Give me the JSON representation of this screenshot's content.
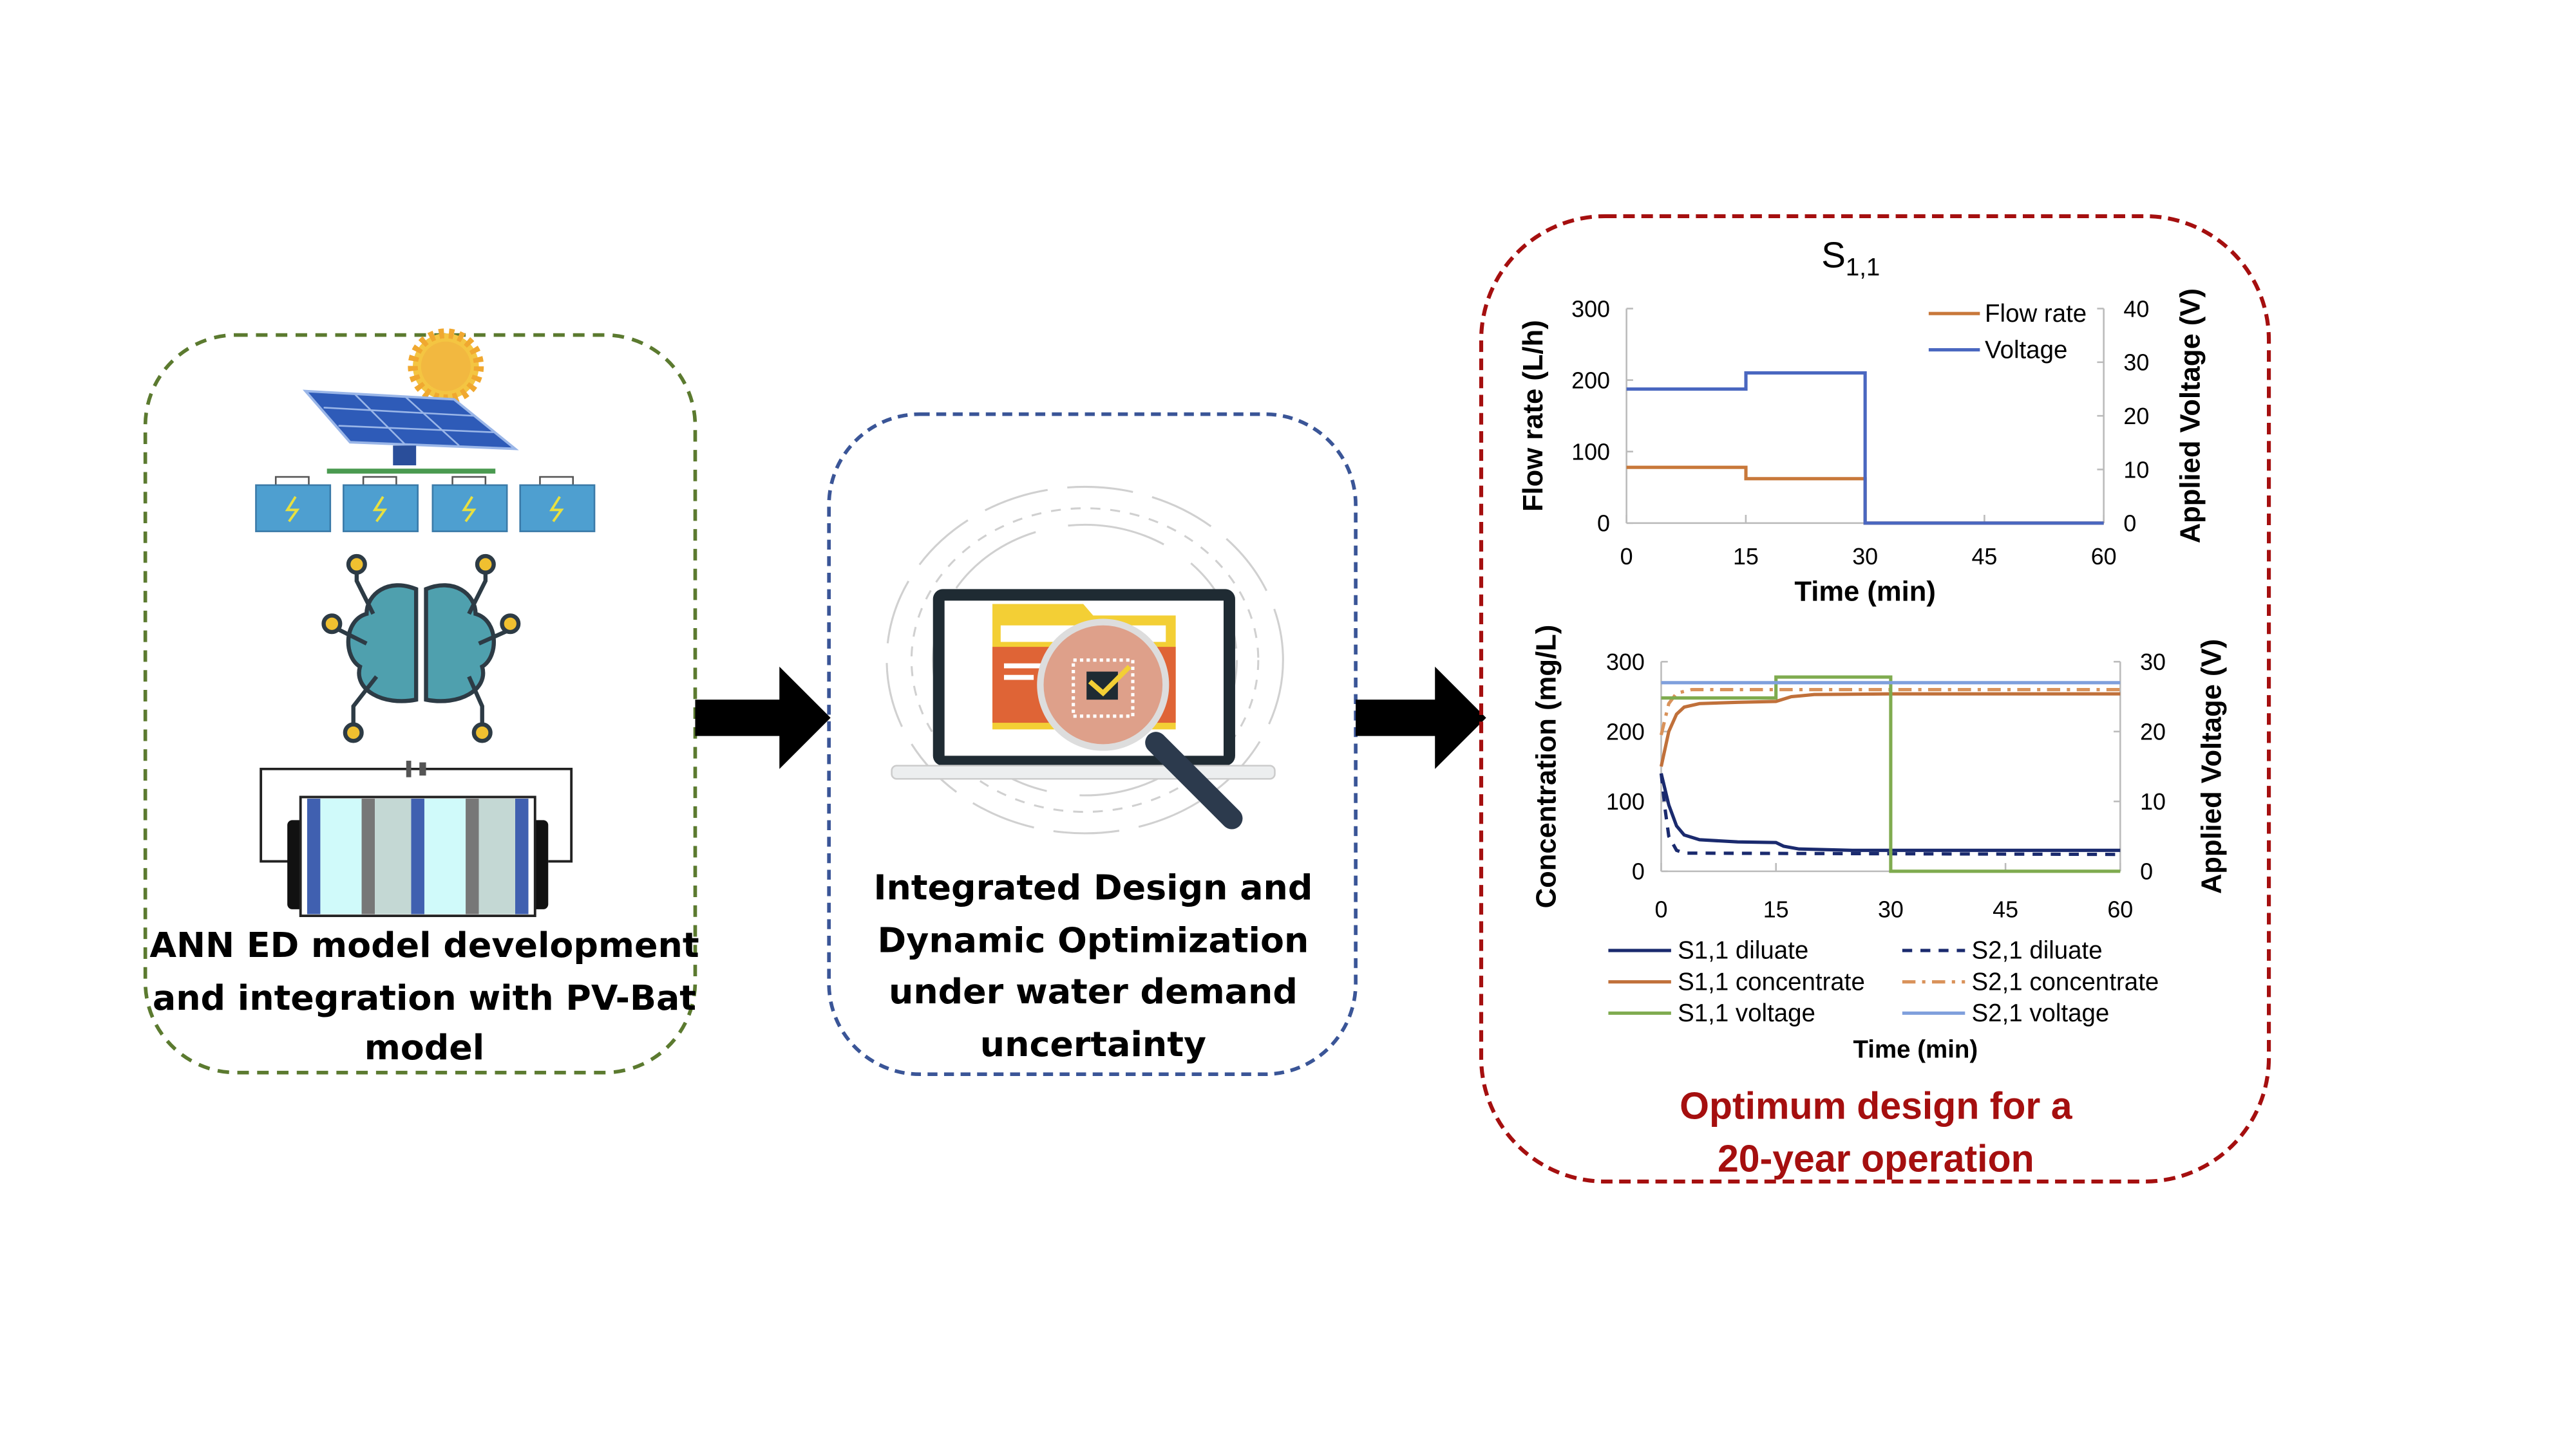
{
  "panels": {
    "left": {
      "caption": [
        "ANN ED model development",
        "and integration with PV-Bat",
        "model"
      ],
      "border_color": "#5b7a2f"
    },
    "middle": {
      "caption": [
        "Integrated Design and",
        "Dynamic Optimization",
        "under water demand",
        "uncertainty"
      ],
      "border_color": "#3a5597"
    },
    "right": {
      "title_main": "S",
      "title_sub": "1,1",
      "caption": [
        "Optimum design for a",
        "20-year operation"
      ],
      "border_color": "#a50f0f",
      "caption_color": "#a50f0f"
    }
  },
  "chart_data": [
    {
      "type": "line",
      "title": "S1,1",
      "xlabel": "Time (min)",
      "ylabel": "Flow rate (L/h)",
      "y2label": "Applied Voltage (V)",
      "xlim": [
        0,
        60
      ],
      "ylim": [
        0,
        300
      ],
      "y2lim": [
        0,
        40
      ],
      "xticks": [
        0,
        15,
        30,
        45,
        60
      ],
      "yticks": [
        0,
        100,
        200,
        300
      ],
      "y2ticks": [
        0,
        10,
        20,
        30,
        40
      ],
      "legend_position": "top-right",
      "series": [
        {
          "name": "Flow rate",
          "axis": "left",
          "color": "#c8783a",
          "dash": "",
          "points": [
            [
              0,
              78
            ],
            [
              15,
              78
            ],
            [
              15,
              62
            ],
            [
              30,
              62
            ],
            [
              30,
              0
            ],
            [
              60,
              0
            ]
          ]
        },
        {
          "name": "Voltage",
          "axis": "right",
          "color": "#4a67c0",
          "dash": "",
          "points": [
            [
              0,
              25
            ],
            [
              15,
              25
            ],
            [
              15,
              28
            ],
            [
              30,
              28
            ],
            [
              30,
              0
            ],
            [
              60,
              0
            ]
          ]
        }
      ]
    },
    {
      "type": "line",
      "xlabel": "Time (min)",
      "ylabel": "Concentration (mg/L)",
      "y2label": "Applied Voltage (V)",
      "xlim": [
        0,
        60
      ],
      "ylim": [
        0,
        300
      ],
      "y2lim": [
        0,
        30
      ],
      "xticks": [
        0,
        15,
        30,
        45,
        60
      ],
      "yticks": [
        0,
        100,
        200,
        300
      ],
      "y2ticks": [
        0,
        10,
        20,
        30
      ],
      "legend_position": "bottom",
      "series": [
        {
          "name": "S1,1 diluate",
          "axis": "left",
          "color": "#1a2a6e",
          "dash": "",
          "points": [
            [
              0,
              140
            ],
            [
              1,
              95
            ],
            [
              2,
              65
            ],
            [
              3,
              52
            ],
            [
              5,
              45
            ],
            [
              10,
              42
            ],
            [
              15,
              41
            ],
            [
              16,
              36
            ],
            [
              18,
              32
            ],
            [
              25,
              30
            ],
            [
              60,
              30
            ]
          ]
        },
        {
          "name": "S2,1 diluate",
          "axis": "left",
          "color": "#1a2a6e",
          "dash": "6,5",
          "points": [
            [
              0,
              140
            ],
            [
              0.5,
              90
            ],
            [
              1,
              50
            ],
            [
              2,
              30
            ],
            [
              3,
              26
            ],
            [
              60,
              24
            ]
          ]
        },
        {
          "name": "S1,1 concentrate",
          "axis": "left",
          "color": "#c0703a",
          "dash": "",
          "points": [
            [
              0,
              150
            ],
            [
              1,
              200
            ],
            [
              2,
              225
            ],
            [
              3,
              235
            ],
            [
              5,
              240
            ],
            [
              10,
              242
            ],
            [
              15,
              243
            ],
            [
              17,
              250
            ],
            [
              20,
              253
            ],
            [
              30,
              254
            ],
            [
              60,
              254
            ]
          ]
        },
        {
          "name": "S2,1 concentrate",
          "axis": "left",
          "color": "#d9925a",
          "dash": "8,4,2,4",
          "points": [
            [
              0,
              195
            ],
            [
              1,
              240
            ],
            [
              2,
              255
            ],
            [
              4,
              260
            ],
            [
              60,
              260
            ]
          ]
        },
        {
          "name": "S1,1 voltage",
          "axis": "right",
          "color": "#7fab4f",
          "dash": "",
          "points": [
            [
              0,
              24.8
            ],
            [
              15,
              24.8
            ],
            [
              15,
              27.8
            ],
            [
              30,
              27.8
            ],
            [
              30,
              0
            ],
            [
              60,
              0
            ]
          ]
        },
        {
          "name": "S2,1 voltage",
          "axis": "right",
          "color": "#7f9fdc",
          "dash": "",
          "points": [
            [
              0,
              27
            ],
            [
              60,
              27
            ]
          ]
        }
      ]
    }
  ]
}
